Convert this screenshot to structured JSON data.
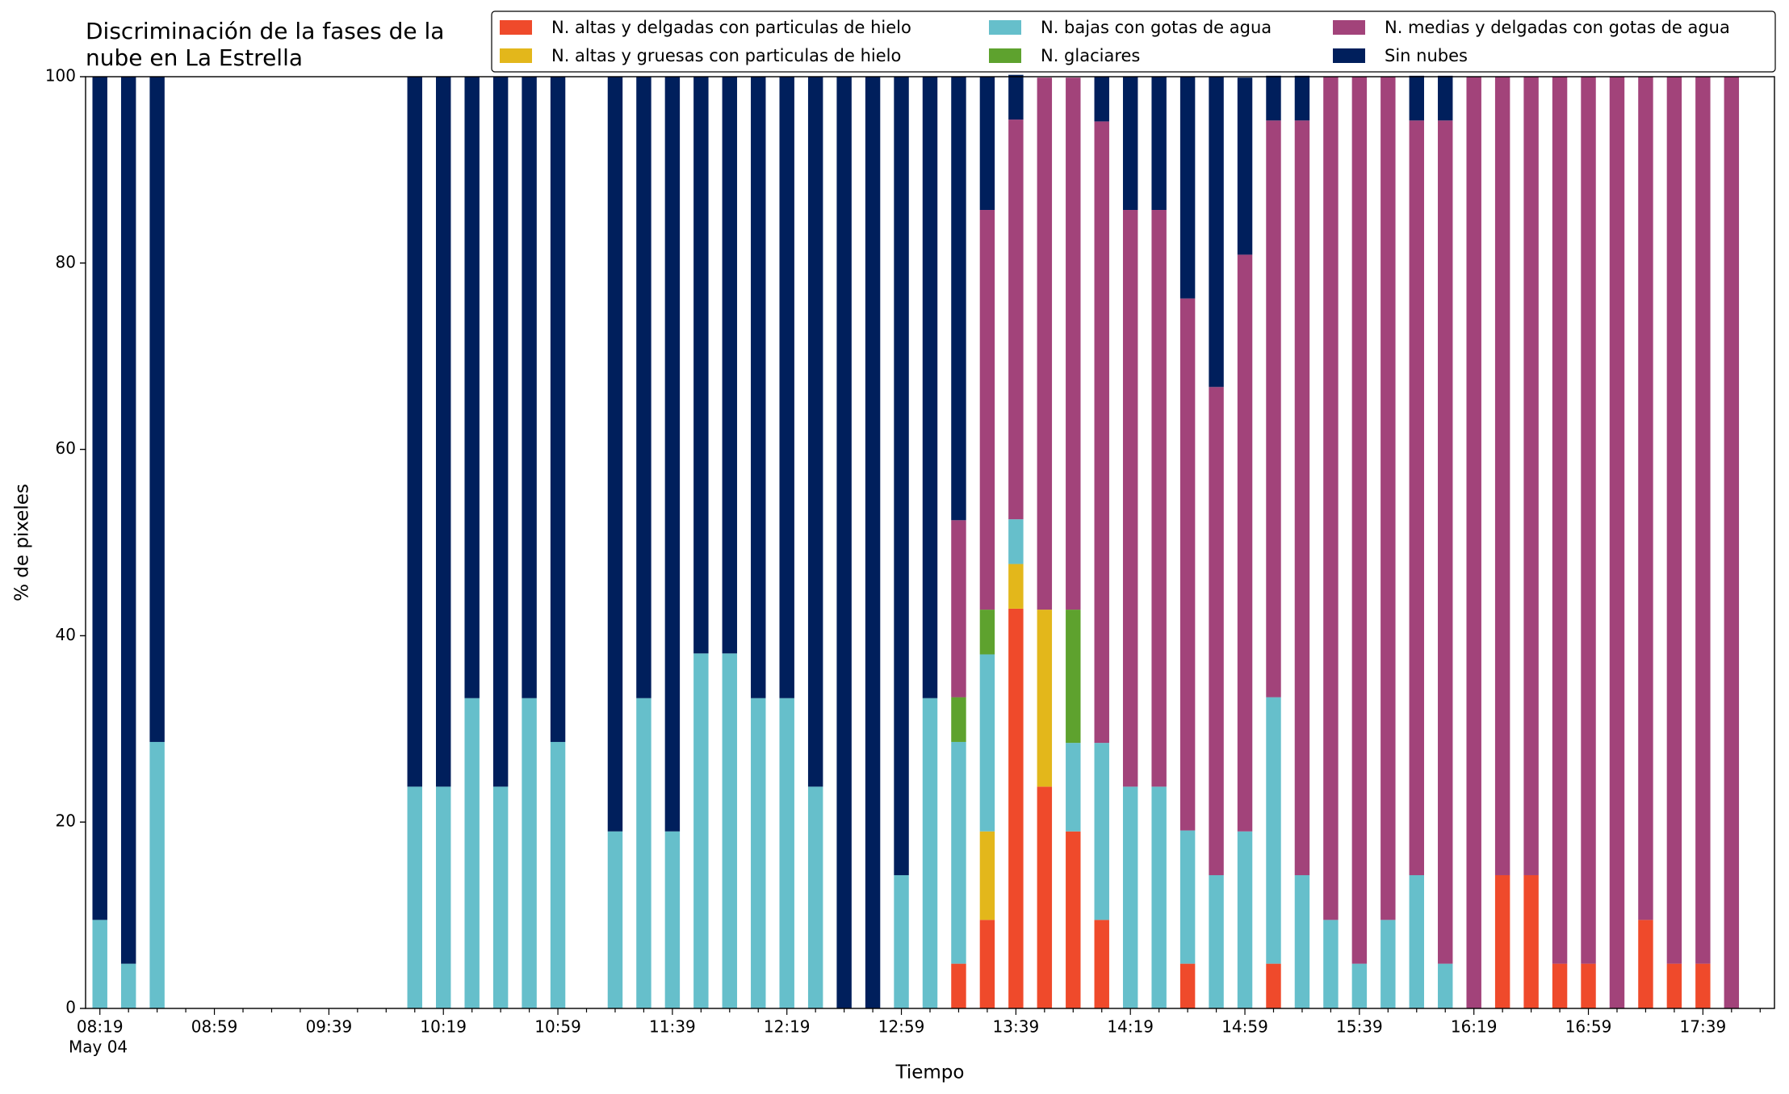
{
  "chart_data": {
    "type": "stacked_bar",
    "title_lines": [
      "Discriminación de la fases de la",
      "nube en La Estrella"
    ],
    "xlabel": "Tiempo",
    "ylabel": "% de pixeles",
    "x_date_label": "May 04",
    "legend": "upper right",
    "categories": [
      "08:19",
      null,
      null,
      null,
      "08:59",
      null,
      null,
      null,
      "09:39",
      null,
      null,
      null,
      "10:19",
      null,
      null,
      null,
      "10:59",
      null,
      null,
      null,
      "11:39",
      null,
      null,
      null,
      "12:19",
      null,
      null,
      null,
      "12:59",
      null,
      null,
      null,
      "13:39",
      null,
      null,
      null,
      "14:19",
      null,
      null,
      null,
      "14:59",
      null,
      null,
      null,
      "15:39",
      null,
      null,
      null,
      "16:19",
      null,
      null,
      null,
      "16:59",
      null,
      null,
      null,
      "17:39",
      null,
      null
    ],
    "ylim": [
      0,
      100
    ],
    "yticks": [
      0,
      20,
      40,
      60,
      80,
      100
    ],
    "series": [
      {
        "name": "N. altas y delgadas con particulas de hielo",
        "color": "#ef4a2b",
        "values": [
          0,
          0,
          0,
          0,
          0,
          0,
          0,
          0,
          0,
          0,
          0,
          0,
          0,
          0,
          0,
          0,
          0,
          0,
          0,
          0,
          0,
          0,
          0,
          0,
          0,
          0,
          0,
          0,
          0,
          0,
          4.8,
          9.5,
          42.9,
          23.8,
          19,
          9.5,
          0,
          0,
          4.8,
          0,
          0,
          4.8,
          0,
          0,
          0,
          0,
          0,
          0,
          0,
          14.3,
          14.3,
          4.8,
          4.8,
          0,
          9.5,
          4.8,
          4.8,
          0,
          0
        ]
      },
      {
        "name": "N. altas y gruesas con particulas de hielo",
        "color": "#e3b71b",
        "values": [
          0,
          0,
          0,
          0,
          0,
          0,
          0,
          0,
          0,
          0,
          0,
          0,
          0,
          0,
          0,
          0,
          0,
          0,
          0,
          0,
          0,
          0,
          0,
          0,
          0,
          0,
          0,
          0,
          0,
          0,
          0,
          9.5,
          4.8,
          19,
          0,
          0,
          0,
          0,
          0,
          0,
          0,
          0,
          0,
          0,
          0,
          0,
          0,
          0,
          0,
          0,
          0,
          0,
          0,
          0,
          0,
          0,
          0,
          0,
          0
        ]
      },
      {
        "name": "N. bajas con gotas de agua",
        "color": "#66bfcb",
        "values": [
          9.5,
          4.8,
          28.6,
          0,
          0,
          0,
          0,
          0,
          0,
          0,
          0,
          23.8,
          23.8,
          33.3,
          23.8,
          33.3,
          28.6,
          0,
          19,
          33.3,
          19,
          38.1,
          38.1,
          33.3,
          33.3,
          23.8,
          0,
          0,
          14.3,
          33.3,
          23.8,
          19,
          4.8,
          0,
          9.5,
          19,
          23.8,
          23.8,
          14.3,
          14.3,
          19,
          28.6,
          14.3,
          9.5,
          4.8,
          9.5,
          14.3,
          4.8,
          0,
          0,
          0,
          0,
          0,
          0,
          0,
          0,
          0,
          0,
          0
        ]
      },
      {
        "name": "N. glaciares",
        "color": "#5ea22e",
        "values": [
          0,
          0,
          0,
          0,
          0,
          0,
          0,
          0,
          0,
          0,
          0,
          0,
          0,
          0,
          0,
          0,
          0,
          0,
          0,
          0,
          0,
          0,
          0,
          0,
          0,
          0,
          0,
          0,
          0,
          0,
          4.8,
          4.8,
          0,
          0,
          14.3,
          0,
          0,
          0,
          0,
          0,
          0,
          0,
          0,
          0,
          0,
          0,
          0,
          0,
          0,
          0,
          0,
          0,
          0,
          0,
          0,
          0,
          0,
          0,
          0
        ]
      },
      {
        "name": "N. medias y delgadas con gotas de agua",
        "color": "#a2437a",
        "values": [
          0,
          0,
          0,
          0,
          0,
          0,
          0,
          0,
          0,
          0,
          0,
          0,
          0,
          0,
          0,
          0,
          0,
          0,
          0,
          0,
          0,
          0,
          0,
          0,
          0,
          0,
          0,
          0,
          0,
          0,
          19,
          42.9,
          42.9,
          57.1,
          57.1,
          66.7,
          61.9,
          61.9,
          57.1,
          52.4,
          61.9,
          61.9,
          81,
          90.5,
          95.2,
          90.5,
          81,
          90.5,
          100,
          85.7,
          85.7,
          95.2,
          95.2,
          100,
          90.5,
          95.2,
          95.2,
          100,
          0
        ]
      },
      {
        "name": "Sin nubes",
        "color": "#001f5c",
        "values": [
          90.5,
          95.2,
          71.4,
          0,
          0,
          0,
          0,
          0,
          0,
          0,
          0,
          76.2,
          76.2,
          66.7,
          76.2,
          66.7,
          71.4,
          0,
          81,
          66.7,
          81,
          61.9,
          61.9,
          66.7,
          66.7,
          76.2,
          100,
          100,
          85.7,
          66.7,
          47.6,
          14.3,
          4.8,
          0,
          0,
          4.8,
          14.3,
          14.3,
          23.8,
          33.3,
          19,
          4.8,
          4.8,
          0,
          0,
          0,
          4.8,
          4.8,
          0,
          0,
          0,
          0,
          0,
          0,
          0,
          0,
          0,
          0,
          0
        ]
      }
    ]
  }
}
